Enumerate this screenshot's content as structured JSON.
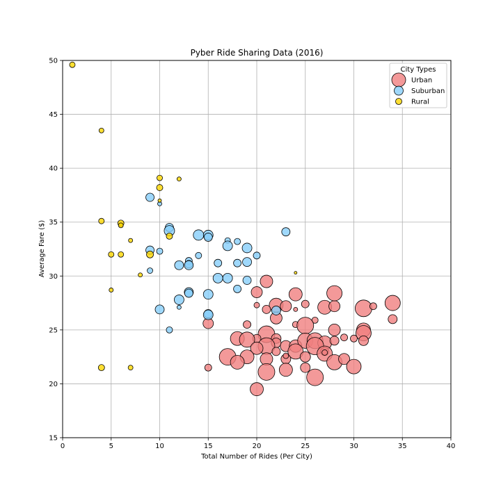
{
  "chart_data": {
    "type": "scatter",
    "title": "Pyber Ride Sharing Data (2016)",
    "xlabel": "Total Number of Rides (Per City)",
    "ylabel": "Average Fare ($)",
    "xlim": [
      0,
      40
    ],
    "ylim": [
      15,
      50
    ],
    "xticks": [
      0,
      5,
      10,
      15,
      20,
      25,
      30,
      35,
      40
    ],
    "yticks": [
      15,
      20,
      25,
      30,
      35,
      40,
      45,
      50
    ],
    "grid": true,
    "legend": {
      "title": "City Types",
      "placement": "top-right"
    },
    "series": [
      {
        "name": "Urban",
        "color": "#F08080",
        "points": [
          [
            20,
            28.5,
            16
          ],
          [
            21,
            29.5,
            18
          ],
          [
            22,
            27.3,
            20
          ],
          [
            22,
            26.1,
            17
          ],
          [
            23,
            27.2,
            16
          ],
          [
            24,
            28.3,
            19
          ],
          [
            25,
            27.4,
            11
          ],
          [
            26,
            25.9,
            9
          ],
          [
            27,
            27.1,
            20
          ],
          [
            28,
            27.2,
            16
          ],
          [
            28,
            28.4,
            22
          ],
          [
            31,
            27.0,
            24
          ],
          [
            32,
            27.2,
            10
          ],
          [
            34,
            27.5,
            22
          ],
          [
            34,
            26.0,
            13
          ],
          [
            20,
            27.3,
            8
          ],
          [
            21,
            26.9,
            12
          ],
          [
            24,
            26.9,
            6
          ],
          [
            19,
            25.5,
            11
          ],
          [
            15,
            25.6,
            15
          ],
          [
            24,
            25.5,
            9
          ],
          [
            25,
            25.4,
            24
          ],
          [
            28,
            25.0,
            17
          ],
          [
            31,
            25.0,
            20
          ],
          [
            31,
            24.7,
            22
          ],
          [
            31,
            24.0,
            14
          ],
          [
            21,
            24.6,
            24
          ],
          [
            20,
            24.2,
            12
          ],
          [
            22,
            24.2,
            14
          ],
          [
            18,
            24.2,
            20
          ],
          [
            19,
            24.1,
            22
          ],
          [
            22,
            23.8,
            14
          ],
          [
            23,
            23.5,
            16
          ],
          [
            24,
            23.5,
            18
          ],
          [
            25,
            24.0,
            22
          ],
          [
            26,
            24.0,
            23
          ],
          [
            27,
            23.8,
            20
          ],
          [
            28,
            24.0,
            13
          ],
          [
            29,
            24.3,
            10
          ],
          [
            30,
            24.2,
            10
          ],
          [
            21,
            23.5,
            24
          ],
          [
            20,
            23.3,
            18
          ],
          [
            22,
            23.0,
            12
          ],
          [
            24,
            23.0,
            22
          ],
          [
            26,
            23.5,
            25
          ],
          [
            27,
            23.0,
            12
          ],
          [
            17,
            22.5,
            24
          ],
          [
            19,
            22.5,
            20
          ],
          [
            21,
            22.3,
            18
          ],
          [
            23,
            22.3,
            14
          ],
          [
            25,
            22.5,
            15
          ],
          [
            27,
            22.8,
            22
          ],
          [
            28,
            22.0,
            22
          ],
          [
            29,
            22.3,
            16
          ],
          [
            18,
            22.0,
            20
          ],
          [
            15,
            21.5,
            10
          ],
          [
            23,
            21.3,
            19
          ],
          [
            25,
            21.5,
            14
          ],
          [
            30,
            21.6,
            21
          ],
          [
            21,
            21.1,
            24
          ],
          [
            26,
            20.6,
            24
          ],
          [
            20,
            19.5,
            19
          ],
          [
            23,
            22.6,
            8
          ],
          [
            27,
            22.9,
            8
          ]
        ]
      },
      {
        "name": "Suburban",
        "color": "#87CEFA",
        "points": [
          [
            9,
            37.3,
            12
          ],
          [
            10,
            36.7,
            6
          ],
          [
            11,
            34.5,
            12
          ],
          [
            11,
            34.2,
            15
          ],
          [
            14,
            33.8,
            15
          ],
          [
            15,
            33.8,
            14
          ],
          [
            15,
            33.6,
            12
          ],
          [
            17,
            33.3,
            8
          ],
          [
            18,
            33.2,
            9
          ],
          [
            17,
            32.8,
            14
          ],
          [
            19,
            32.6,
            14
          ],
          [
            9,
            32.4,
            12
          ],
          [
            10,
            32.3,
            9
          ],
          [
            14,
            31.9,
            9
          ],
          [
            20,
            31.9,
            10
          ],
          [
            13,
            31.4,
            10
          ],
          [
            13,
            31.1,
            11
          ],
          [
            13,
            31.0,
            13
          ],
          [
            12,
            31.0,
            13
          ],
          [
            16,
            31.2,
            11
          ],
          [
            18,
            31.2,
            11
          ],
          [
            19,
            31.3,
            13
          ],
          [
            9,
            30.5,
            8
          ],
          [
            16,
            29.8,
            14
          ],
          [
            17,
            29.8,
            14
          ],
          [
            19,
            29.6,
            12
          ],
          [
            18,
            28.8,
            11
          ],
          [
            13,
            28.5,
            13
          ],
          [
            13,
            28.4,
            12
          ],
          [
            15,
            28.3,
            14
          ],
          [
            12,
            27.8,
            14
          ],
          [
            12,
            27.1,
            6
          ],
          [
            10,
            26.9,
            13
          ],
          [
            15,
            26.5,
            12
          ],
          [
            15,
            26.4,
            14
          ],
          [
            22,
            26.8,
            13
          ],
          [
            11,
            25.0,
            9
          ],
          [
            23,
            34.1,
            12
          ]
        ]
      },
      {
        "name": "Rural",
        "color": "#FFD700",
        "points": [
          [
            1,
            49.6,
            8
          ],
          [
            4,
            43.5,
            7
          ],
          [
            10,
            39.1,
            8
          ],
          [
            12,
            39.0,
            6
          ],
          [
            10,
            38.2,
            9
          ],
          [
            10,
            37.0,
            5
          ],
          [
            4,
            35.1,
            8
          ],
          [
            6,
            34.9,
            9
          ],
          [
            6,
            34.7,
            7
          ],
          [
            11,
            33.7,
            9
          ],
          [
            7,
            33.3,
            6
          ],
          [
            5,
            32.0,
            8
          ],
          [
            6,
            32.0,
            8
          ],
          [
            9,
            32.0,
            10
          ],
          [
            8,
            30.1,
            6
          ],
          [
            5,
            28.7,
            6
          ],
          [
            4,
            21.5,
            9
          ],
          [
            7,
            21.5,
            7
          ],
          [
            24,
            30.3,
            4
          ]
        ]
      }
    ]
  }
}
